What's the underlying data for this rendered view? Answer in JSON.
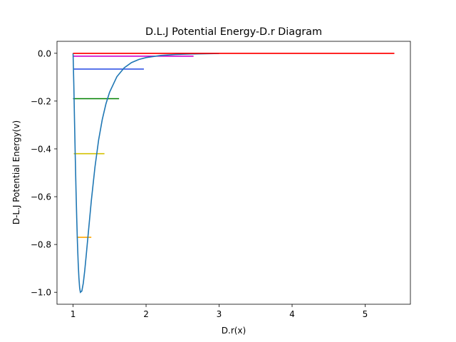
{
  "chart_data": {
    "type": "line",
    "title": "D.L.J Potential Energy-D.r Diagram",
    "xlabel": "D.r(x)",
    "ylabel": "D-L.J Potential Energy(v)",
    "xlim": [
      0.78,
      5.62
    ],
    "ylim": [
      -1.05,
      0.05
    ],
    "grid": false,
    "legend": "none",
    "x_ticks": [
      {
        "value": 1,
        "label": "1"
      },
      {
        "value": 2,
        "label": "2"
      },
      {
        "value": 3,
        "label": "3"
      },
      {
        "value": 4,
        "label": "4"
      },
      {
        "value": 5,
        "label": "5"
      }
    ],
    "y_ticks": [
      {
        "value": 0.0,
        "label": "0.0"
      },
      {
        "value": -0.2,
        "label": "−0.2"
      },
      {
        "value": -0.4,
        "label": "−0.4"
      },
      {
        "value": -0.6,
        "label": "−0.6"
      },
      {
        "value": -0.8,
        "label": "−0.8"
      },
      {
        "value": -1.0,
        "label": "−1.0"
      }
    ],
    "curve": {
      "color": "#1f77b4",
      "x": [
        1.0,
        1.01,
        1.02,
        1.03,
        1.04,
        1.05,
        1.06,
        1.07,
        1.08,
        1.09,
        1.1,
        1.12,
        1.14,
        1.16,
        1.18,
        1.2,
        1.25,
        1.3,
        1.35,
        1.4,
        1.45,
        1.5,
        1.6,
        1.7,
        1.8,
        1.9,
        2.0,
        2.2,
        2.4,
        2.6,
        2.8,
        3.0
      ],
      "y": [
        0.0,
        -0.127,
        -0.285,
        -0.432,
        -0.567,
        -0.689,
        -0.793,
        -0.876,
        -0.939,
        -0.981,
        -1.0,
        -0.995,
        -0.962,
        -0.909,
        -0.846,
        -0.78,
        -0.617,
        -0.476,
        -0.363,
        -0.277,
        -0.212,
        -0.163,
        -0.098,
        -0.061,
        -0.039,
        -0.026,
        -0.018,
        -0.009,
        -0.005,
        -0.003,
        -0.002,
        -0.001
      ]
    },
    "levels": [
      {
        "y": -0.77,
        "x_start": 1.05,
        "x_end": 1.25,
        "color": "#ffa500"
      },
      {
        "y": -0.42,
        "x_start": 1.01,
        "x_end": 1.43,
        "color": "#d4c100"
      },
      {
        "y": -0.19,
        "x_start": 1.0,
        "x_end": 1.63,
        "color": "#008000"
      },
      {
        "y": -0.066,
        "x_start": 1.0,
        "x_end": 1.97,
        "color": "#3355e6"
      },
      {
        "y": -0.012,
        "x_start": 1.0,
        "x_end": 2.65,
        "color": "#cc00cc"
      },
      {
        "y": 0.0,
        "x_start": 1.0,
        "x_end": 5.4,
        "color": "#ff0000"
      }
    ]
  }
}
